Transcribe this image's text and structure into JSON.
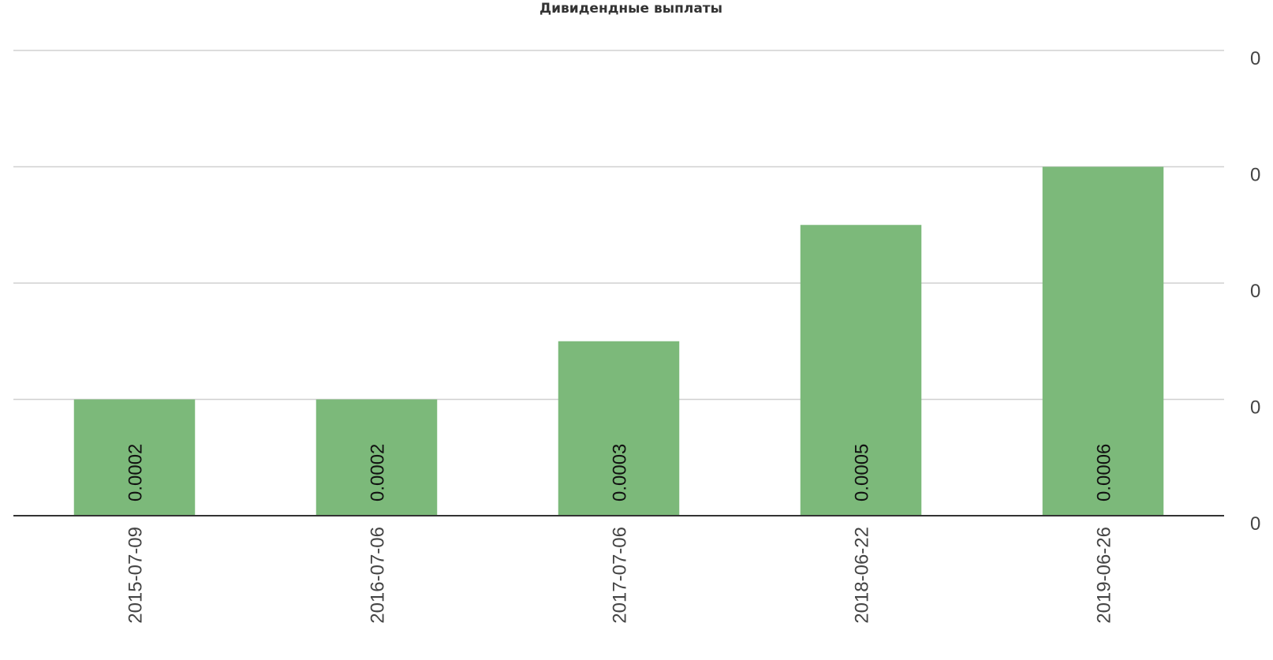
{
  "chart_data": {
    "type": "bar",
    "title": "Дивидендные выплаты",
    "categories": [
      "2015-07-09",
      "2016-07-06",
      "2017-07-06",
      "2018-06-22",
      "2019-06-26"
    ],
    "values": [
      0.0002,
      0.0002,
      0.0003,
      0.0005,
      0.0006
    ],
    "data_labels": [
      "0.0002",
      "0.0002",
      "0.0003",
      "0.0005",
      "0.0006"
    ],
    "ylim": [
      0,
      0.0008
    ],
    "yticks": [
      0,
      0.0002,
      0.0004,
      0.0006,
      0.0008
    ],
    "ytick_labels": [
      "0",
      "0",
      "0",
      "0",
      "0"
    ],
    "y_axis_position": "right",
    "grid": true,
    "bar_color": "#7cb97a",
    "xlabel": "",
    "ylabel": ""
  }
}
